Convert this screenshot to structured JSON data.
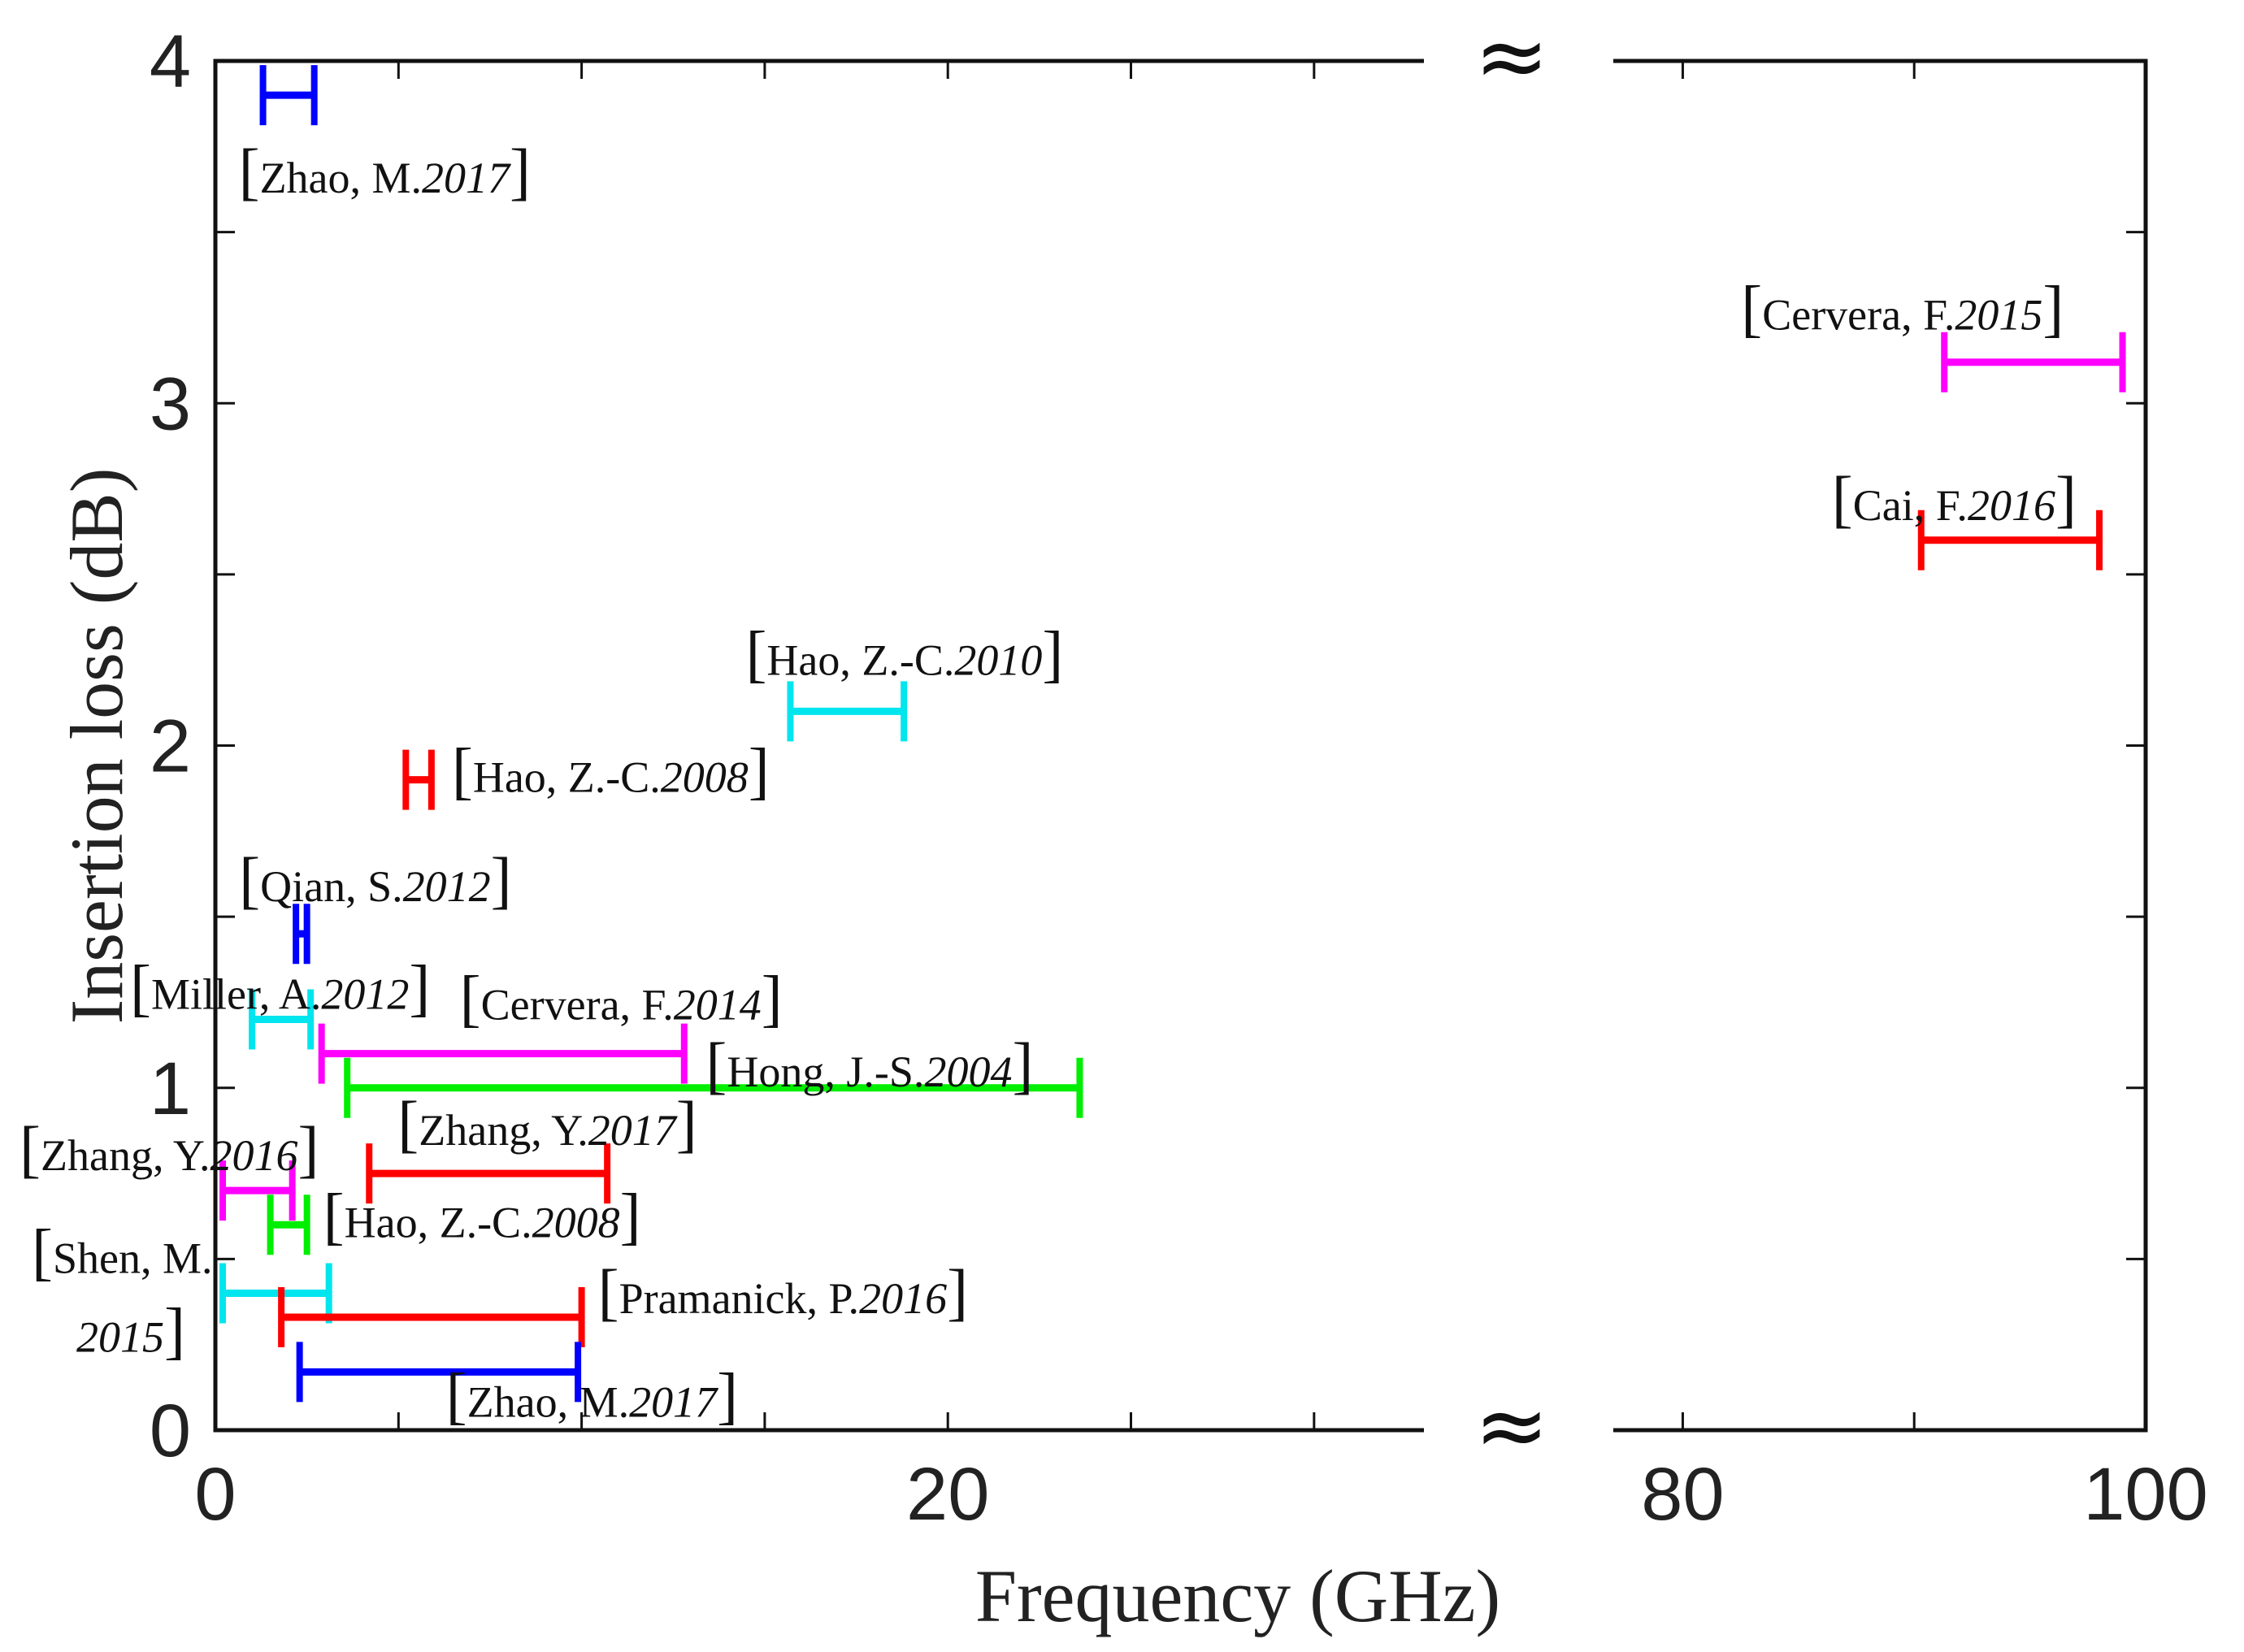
{
  "chart_data": {
    "type": "range",
    "xlabel": "Frequency (GHz)",
    "ylabel": "Insertion loss (dB)",
    "xlim_left": [
      0,
      33
    ],
    "xlim_right": [
      77,
      100
    ],
    "ylim": [
      0,
      4
    ],
    "x_ticks_left": [
      0,
      20
    ],
    "x_ticks_right": [
      80,
      100
    ],
    "y_ticks": [
      0,
      1,
      2,
      3,
      4
    ],
    "axis_break_symbol": "≈",
    "series": [
      {
        "name": "Zhao, M.",
        "year": "2017",
        "x_start": 1.3,
        "x_end": 2.7,
        "y": 3.9,
        "color": "#0000ff"
      },
      {
        "name": "Cervera, F.",
        "year": "2015",
        "x_start": 91.3,
        "x_end": 99.0,
        "y": 3.12,
        "color": "#ff00ff"
      },
      {
        "name": "Cai, F.",
        "year": "2016",
        "x_start": 90.3,
        "x_end": 98.0,
        "y": 2.6,
        "color": "#ff0000"
      },
      {
        "name": "Hao, Z.-C.",
        "year": "2010",
        "x_start": 15.7,
        "x_end": 18.8,
        "y": 2.1,
        "color": "#00e5ee"
      },
      {
        "name": "Hao, Z.-C.",
        "year": "2008",
        "x_start": 5.2,
        "x_end": 5.9,
        "y": 1.9,
        "color": "#ff0000"
      },
      {
        "name": "Qian, S.",
        "year": "2012",
        "x_start": 2.2,
        "x_end": 2.5,
        "y": 1.45,
        "color": "#0000ff"
      },
      {
        "name": "Miller, A.",
        "year": "2012",
        "x_start": 1.0,
        "x_end": 2.6,
        "y": 1.2,
        "color": "#00e5ee"
      },
      {
        "name": "Cervera, F.",
        "year": "2014",
        "x_start": 2.9,
        "x_end": 12.8,
        "y": 1.1,
        "color": "#ff00ff"
      },
      {
        "name": "Hong, J.-S.",
        "year": "2004",
        "x_start": 3.6,
        "x_end": 23.6,
        "y": 1.0,
        "color": "#00ee00"
      },
      {
        "name": "Zhang, Y.",
        "year": "2017",
        "x_start": 4.2,
        "x_end": 10.7,
        "y": 0.75,
        "color": "#ff0000"
      },
      {
        "name": "Zhang, Y.",
        "year": "2016",
        "x_start": 0.2,
        "x_end": 2.1,
        "y": 0.7,
        "color": "#ff00ff"
      },
      {
        "name": "Hao, Z.-C.",
        "year": "2008",
        "x_start": 1.5,
        "x_end": 2.5,
        "y": 0.6,
        "color": "#00ee00"
      },
      {
        "name": "Shen, M.",
        "year": "2015",
        "x_start": 0.2,
        "x_end": 3.1,
        "y": 0.4,
        "color": "#00e5ee"
      },
      {
        "name": "Pramanick, P.",
        "year": "2016",
        "x_start": 1.8,
        "x_end": 10.0,
        "y": 0.33,
        "color": "#ff0000"
      },
      {
        "name": "Zhao, M.",
        "year": "2017",
        "x_start": 2.3,
        "x_end": 9.9,
        "y": 0.17,
        "color": "#0000ff"
      }
    ]
  }
}
